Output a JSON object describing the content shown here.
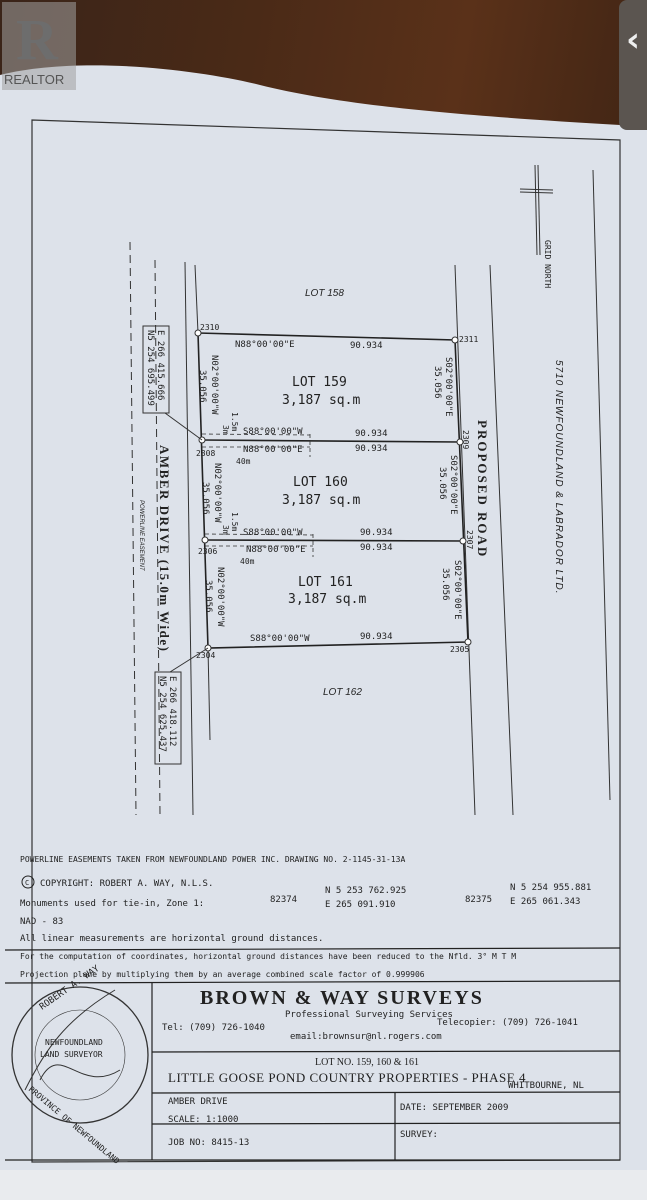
{
  "overlay": {
    "logo_text": "REALTOR",
    "back_icon": "chevron-left-icon"
  },
  "plan": {
    "north_arrow_label": "GRID NORTH",
    "owner_label": "5710 NEWFOUNDLAND & LABRADOR LTD.",
    "proposed_road": "PROPOSED ROAD",
    "amber_drive": "AMBER DRIVE (15.0m Wide)",
    "powerline_easement": "POWERLINE EASEMENT",
    "lot_158": "LOT 158",
    "lot_162": "LOT 162",
    "lots": [
      {
        "name": "LOT 159",
        "area": "3,187 sq.m"
      },
      {
        "name": "LOT 160",
        "area": "3,187 sq.m"
      },
      {
        "name": "LOT 161",
        "area": "3,187 sq.m"
      }
    ],
    "bearings": {
      "north_e": "N88°00'00\"E",
      "south_w": "S88°00'00\"W",
      "west_n": "N02°00'00\"W",
      "east_s": "S02°00'00\"E"
    },
    "distances": {
      "width": "90.934",
      "depth": "35.056",
      "setback_40": "40m",
      "setback_3": "3m",
      "setback_15": "1.5m"
    },
    "points": [
      "2310",
      "2311",
      "2308",
      "2309",
      "2306",
      "2307",
      "2304",
      "2305"
    ],
    "coord_top": {
      "n": "N5 254 695.499",
      "e": "E 266 415.666"
    },
    "coord_bottom": {
      "n": "N5 254 625.437",
      "e": "E 266 418.112"
    }
  },
  "notes": {
    "powerline": "POWERLINE EASEMENTS TAKEN FROM NEWFOUNDLAND POWER INC. DRAWING NO. 2-1145-31-13A",
    "copyright": "COPYRIGHT: ROBERT A. WAY, N.L.S.",
    "monuments": "Monuments used for tie-in, Zone 1:",
    "mon1_id": "82374",
    "mon1_n": "N 5 253 762.925",
    "mon1_e": "E 265 091.910",
    "mon2_id": "82375",
    "mon2_n": "N 5 254 955.881",
    "mon2_e": "E 265 061.343",
    "nad": "NAD - 83",
    "linear": "All linear measurements are horizontal ground distances.",
    "computation1": "For the computation of coordinates, horizontal ground distances have been reduced to the Nfld. 3° M T M",
    "computation2": "Projection plane by multiplying them by an average combined scale factor of 0.999906"
  },
  "title_block": {
    "company": "BROWN & WAY SURVEYS",
    "tagline": "Professional Surveying Services",
    "tel": "Tel: (709) 726-1040",
    "fax": "Telecopier: (709) 726-1041",
    "email": "email:brownsur@nl.rogers.com",
    "lots": "LOT NO. 159, 160 & 161",
    "project": "LITTLE GOOSE POND COUNTRY PROPERTIES - PHASE 4",
    "location": "WHITBOURNE, NL",
    "street": "AMBER DRIVE",
    "date": "DATE: SEPTEMBER 2009",
    "scale": "SCALE: 1:1000",
    "survey": "SURVEY:",
    "job": "JOB NO: 8415-13",
    "stamp_top": "ROBERT A. WAY",
    "stamp_mid1": "NEWFOUNDLAND",
    "stamp_mid2": "LAND SURVEYOR",
    "stamp_bottom": "PROVINCE OF NEWFOUNDLAND"
  }
}
